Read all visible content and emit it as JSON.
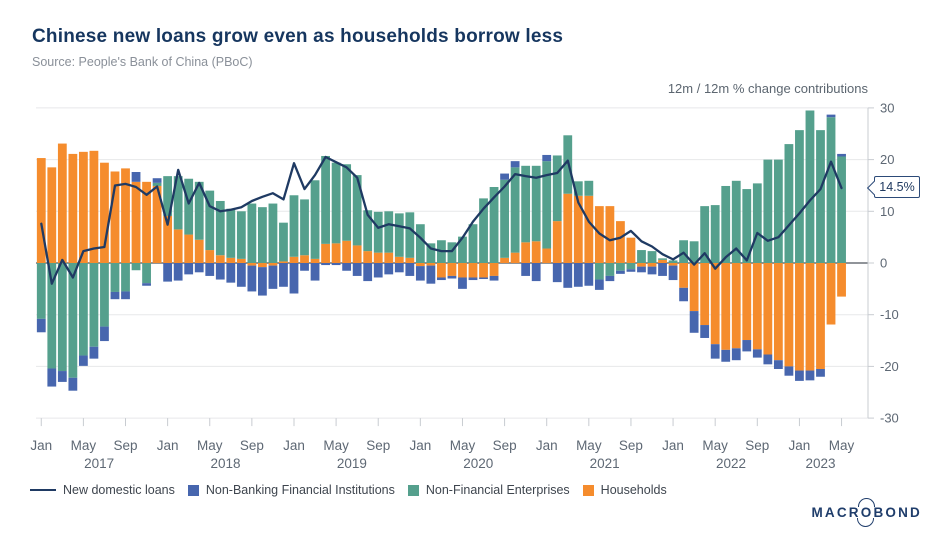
{
  "header": {
    "title": "Chinese new loans grow even as households borrow less",
    "source": "Source: People's Bank of China (PBoC)"
  },
  "chart_data": {
    "type": "bar",
    "subtype": "stacked-bars-with-line-overlay",
    "title": "Chinese new loans grow even as households borrow less",
    "unit_label": "12m / 12m % change contributions",
    "ylim": [
      -30,
      30
    ],
    "yticks": [
      30,
      20,
      10,
      0,
      -10,
      -20,
      -30
    ],
    "grid": "horizontal",
    "legend_position": "bottom",
    "categories": [
      "2017-01",
      "2017-02",
      "2017-03",
      "2017-04",
      "2017-05",
      "2017-06",
      "2017-07",
      "2017-08",
      "2017-09",
      "2017-10",
      "2017-11",
      "2017-12",
      "2018-01",
      "2018-02",
      "2018-03",
      "2018-04",
      "2018-05",
      "2018-06",
      "2018-07",
      "2018-08",
      "2018-09",
      "2018-10",
      "2018-11",
      "2018-12",
      "2019-01",
      "2019-02",
      "2019-03",
      "2019-04",
      "2019-05",
      "2019-06",
      "2019-07",
      "2019-08",
      "2019-09",
      "2019-10",
      "2019-11",
      "2019-12",
      "2020-01",
      "2020-02",
      "2020-03",
      "2020-04",
      "2020-05",
      "2020-06",
      "2020-07",
      "2020-08",
      "2020-09",
      "2020-10",
      "2020-11",
      "2020-12",
      "2021-01",
      "2021-02",
      "2021-03",
      "2021-04",
      "2021-05",
      "2021-06",
      "2021-07",
      "2021-08",
      "2021-09",
      "2021-10",
      "2021-11",
      "2021-12",
      "2022-01",
      "2022-02",
      "2022-03",
      "2022-04",
      "2022-05",
      "2022-06",
      "2022-07",
      "2022-08",
      "2022-09",
      "2022-10",
      "2022-11",
      "2022-12",
      "2023-01",
      "2023-02",
      "2023-03",
      "2023-04",
      "2023-05"
    ],
    "series": [
      {
        "name": "Households",
        "color": "#F58C2D",
        "values": [
          20.3,
          18.5,
          23.1,
          21.1,
          21.5,
          21.7,
          19.4,
          17.7,
          18.3,
          15.7,
          15.7,
          14.9,
          9.1,
          6.5,
          5.5,
          4.5,
          2.5,
          1.5,
          1.0,
          0.8,
          -0.5,
          -0.8,
          -0.5,
          0.3,
          1.2,
          1.5,
          0.8,
          3.7,
          3.8,
          4.3,
          3.4,
          2.3,
          2.0,
          2.0,
          1.2,
          1.0,
          -0.6,
          -0.5,
          -2.8,
          -2.5,
          -2.8,
          -2.8,
          -2.8,
          -2.5,
          1.0,
          2.0,
          4.0,
          4.2,
          2.8,
          8.1,
          13.4,
          13.0,
          13.0,
          11.0,
          11.0,
          8.1,
          4.9,
          -0.7,
          -0.7,
          0.6,
          -0.5,
          -4.8,
          -9.3,
          -12.0,
          -15.7,
          -16.8,
          -16.5,
          -14.9,
          -16.7,
          -17.7,
          -18.8,
          -20.0,
          -20.8,
          -20.8,
          -20.5,
          -11.9,
          -6.5
        ]
      },
      {
        "name": "Non-Financial Enterprises",
        "color": "#55A08D",
        "values": [
          -10.8,
          -20.4,
          -20.9,
          -22.2,
          -17.9,
          -16.2,
          -12.3,
          -5.6,
          -5.5,
          -1.4,
          -3.9,
          0.6,
          7.7,
          10.3,
          10.8,
          11.2,
          11.5,
          10.5,
          9.5,
          9.2,
          11.5,
          10.8,
          11.5,
          7.5,
          11.9,
          10.8,
          15.2,
          17.0,
          15.6,
          14.8,
          13.6,
          7.9,
          7.9,
          8.0,
          8.4,
          8.8,
          7.5,
          3.8,
          4.4,
          4.0,
          5.1,
          7.5,
          12.5,
          14.7,
          15.1,
          16.5,
          14.8,
          14.6,
          16.9,
          12.7,
          11.3,
          2.8,
          2.9,
          -3.2,
          -2.5,
          -1.5,
          -1.2,
          2.5,
          2.3,
          0.3,
          0.5,
          4.4,
          4.2,
          11.0,
          11.2,
          14.9,
          15.9,
          14.3,
          15.4,
          20.0,
          20.0,
          23.0,
          25.7,
          29.5,
          25.7,
          28.2,
          20.6
        ]
      },
      {
        "name": "Non-Banking Financial Institutions",
        "color": "#4766AE",
        "values": [
          -2.6,
          -3.5,
          -2.1,
          -2.5,
          -2.0,
          -2.3,
          -2.8,
          -1.4,
          -1.5,
          1.9,
          -0.5,
          0.9,
          -3.6,
          -3.4,
          -2.2,
          -1.8,
          -2.5,
          -3.2,
          -3.8,
          -4.6,
          -5.0,
          -5.5,
          -4.5,
          -4.6,
          -5.9,
          -1.5,
          -3.4,
          -0.4,
          -0.4,
          -1.5,
          -2.5,
          -3.5,
          -2.8,
          -2.2,
          -1.8,
          -2.5,
          -2.8,
          -3.5,
          -0.5,
          -0.5,
          -2.2,
          -0.5,
          -0.3,
          -0.9,
          1.2,
          1.2,
          -2.5,
          -3.5,
          1.2,
          -3.7,
          -4.8,
          -4.6,
          -4.4,
          -2.0,
          -1.0,
          -0.6,
          -0.5,
          -1.1,
          -1.5,
          -2.5,
          -2.8,
          -2.6,
          -4.2,
          -2.5,
          -2.8,
          -2.3,
          -2.3,
          -2.2,
          -1.6,
          -1.9,
          -1.7,
          -1.8,
          -2.0,
          -1.9,
          -1.5,
          0.5,
          0.5
        ]
      }
    ],
    "line_series": {
      "name": "New domestic loans",
      "color": "#1F3A63",
      "values": [
        7.6,
        -4.0,
        0.6,
        -2.8,
        2.3,
        2.8,
        3.1,
        15.0,
        15.3,
        14.7,
        13.2,
        14.8,
        7.4,
        18.0,
        11.5,
        15.5,
        11.0,
        10.0,
        10.3,
        10.8,
        12.0,
        12.8,
        13.5,
        12.3,
        19.3,
        14.3,
        17.0,
        20.5,
        19.5,
        18.5,
        16.5,
        9.3,
        6.8,
        7.5,
        7.1,
        6.7,
        4.9,
        2.8,
        2.3,
        2.3,
        4.9,
        8.0,
        10.5,
        12.7,
        14.8,
        17.2,
        16.8,
        16.5,
        17.0,
        17.4,
        19.8,
        11.7,
        8.0,
        5.7,
        4.4,
        4.9,
        6.2,
        4.2,
        3.2,
        1.7,
        0.7,
        2.0,
        -0.3,
        1.9,
        -1.1,
        1.1,
        2.8,
        0.5,
        5.8,
        4.3,
        5.0,
        7.3,
        9.6,
        12.1,
        14.3,
        19.6,
        14.5
      ]
    },
    "x_axis": {
      "tick_label_cycle": [
        "Jan",
        "May",
        "Sep"
      ],
      "tick_interval": 4,
      "years": [
        {
          "label": "2017",
          "center_index": 5.5
        },
        {
          "label": "2018",
          "center_index": 17.5
        },
        {
          "label": "2019",
          "center_index": 29.5
        },
        {
          "label": "2020",
          "center_index": 41.5
        },
        {
          "label": "2021",
          "center_index": 53.5
        },
        {
          "label": "2022",
          "center_index": 65.5
        },
        {
          "label": "2023",
          "center_index": 74.0
        }
      ]
    },
    "callout": {
      "text": "14.5%",
      "value": 14.5,
      "points_to": "last line value"
    }
  },
  "legend": {
    "items": [
      {
        "label": "New domestic loans",
        "swatch": "line",
        "color": "#1F3A63"
      },
      {
        "label": "Non-Banking Financial Institutions",
        "swatch": "square",
        "color": "#4766AE"
      },
      {
        "label": "Non-Financial Enterprises",
        "swatch": "square",
        "color": "#55A08D"
      },
      {
        "label": "Households",
        "swatch": "square",
        "color": "#F58C2D"
      }
    ]
  },
  "footer": {
    "logo_pre": "MACR",
    "logo_o": "O",
    "logo_post": "BOND"
  },
  "colors": {
    "title": "#16365F",
    "muted_text": "#8A9099",
    "axis_text": "#5E6874",
    "gridline": "#E7E8EA",
    "zero_line": "#4D545C",
    "axis_line": "#C8CCD1"
  }
}
